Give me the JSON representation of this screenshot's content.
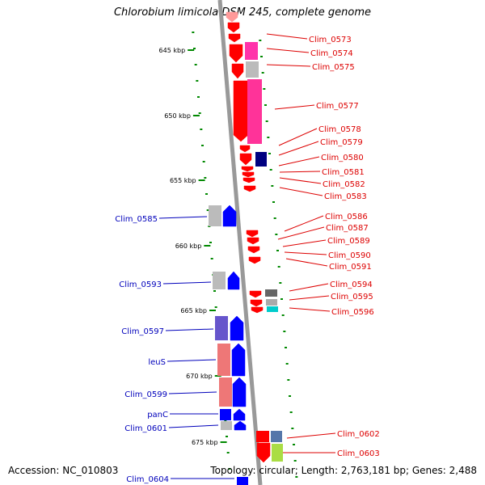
{
  "title": "Chlorobium limicola DSM 245, complete genome",
  "footer": {
    "accession": "Accession: NC_010803",
    "topology": "Topology: circular; Length: 2,763,181 bp; Genes: 2,488"
  },
  "colors": {
    "backbone": "#999999",
    "tick": "#008800",
    "right_label": "#dd0000",
    "left_label": "#0000bb",
    "leader_right": "#dd0000",
    "leader_left": "#0000bb"
  },
  "scale_labels": [
    "645 kbp",
    "650 kbp",
    "655 kbp",
    "660 kbp",
    "665 kbp",
    "670 kbp",
    "675 kbp"
  ],
  "right_genes": [
    "Clim_0573",
    "Clim_0574",
    "Clim_0575",
    "Clim_0577",
    "Clim_0578",
    "Clim_0579",
    "Clim_0580",
    "Clim_0581",
    "Clim_0582",
    "Clim_0583",
    "Clim_0586",
    "Clim_0587",
    "Clim_0589",
    "Clim_0590",
    "Clim_0591",
    "Clim_0594",
    "Clim_0595",
    "Clim_0596",
    "Clim_0602",
    "Clim_0603"
  ],
  "left_genes": [
    "Clim_0585",
    "Clim_0593",
    "Clim_0597",
    "leuS",
    "Clim_0599",
    "panC",
    "Clim_0601",
    "Clim_0604"
  ]
}
